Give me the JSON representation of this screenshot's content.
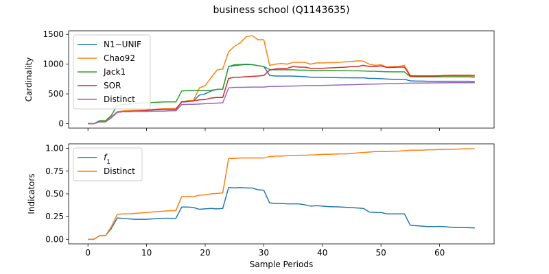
{
  "title": "business school (Q1143635)",
  "colors": {
    "blue": "#1f77b4",
    "orange": "#ff7f0e",
    "green": "#2ca02c",
    "red": "#d62728",
    "purple": "#9467bd"
  },
  "chart_data": [
    {
      "type": "line",
      "title": "business school (Q1143635)",
      "xlabel": "",
      "ylabel": "Cardinality",
      "xlim": [
        -3.3,
        69.3
      ],
      "ylim": [
        -75,
        1560
      ],
      "xticks": [
        0,
        10,
        20,
        30,
        40,
        50,
        60
      ],
      "yticks": [
        0,
        500,
        1000,
        1500
      ],
      "legend_position": "upper-left",
      "x": [
        0,
        1,
        2,
        3,
        4,
        5,
        6,
        7,
        8,
        9,
        10,
        11,
        12,
        13,
        14,
        15,
        16,
        17,
        18,
        19,
        20,
        21,
        22,
        23,
        24,
        25,
        26,
        27,
        28,
        29,
        30,
        31,
        32,
        33,
        34,
        35,
        36,
        37,
        38,
        39,
        40,
        41,
        42,
        43,
        44,
        45,
        46,
        47,
        48,
        49,
        50,
        51,
        52,
        53,
        54,
        55,
        56,
        57,
        58,
        59,
        60,
        61,
        62,
        63,
        64,
        65,
        66
      ],
      "series": [
        {
          "name": "N1−UNIF",
          "color": "#1f77b4",
          "values": [
            0,
            0,
            40,
            40,
            110,
            200,
            210,
            215,
            220,
            222,
            225,
            230,
            235,
            240,
            240,
            240,
            360,
            370,
            380,
            480,
            500,
            550,
            575,
            580,
            960,
            975,
            985,
            995,
            990,
            975,
            960,
            810,
            800,
            800,
            800,
            798,
            795,
            790,
            780,
            780,
            778,
            775,
            775,
            772,
            772,
            770,
            770,
            770,
            760,
            760,
            755,
            750,
            745,
            745,
            745,
            720,
            715,
            715,
            712,
            712,
            712,
            712,
            712,
            712,
            712,
            712,
            710
          ]
        },
        {
          "name": "Chao92",
          "color": "#ff7f0e",
          "values": [
            0,
            0,
            40,
            40,
            115,
            200,
            215,
            220,
            225,
            225,
            230,
            240,
            245,
            250,
            250,
            255,
            360,
            385,
            390,
            600,
            640,
            770,
            900,
            920,
            1210,
            1300,
            1360,
            1460,
            1480,
            1410,
            1410,
            980,
            1000,
            1010,
            1000,
            1030,
            1030,
            1030,
            1000,
            1020,
            1020,
            1025,
            1025,
            1030,
            1040,
            1045,
            1055,
            1050,
            1000,
            980,
            990,
            950,
            960,
            960,
            980,
            810,
            805,
            805,
            805,
            805,
            805,
            805,
            805,
            805,
            805,
            805,
            800
          ]
        },
        {
          "name": "Jack1",
          "color": "#2ca02c",
          "values": [
            0,
            0,
            50,
            50,
            140,
            310,
            320,
            330,
            340,
            345,
            350,
            355,
            360,
            365,
            365,
            365,
            550,
            555,
            555,
            555,
            555,
            560,
            575,
            580,
            960,
            990,
            995,
            1000,
            995,
            975,
            960,
            910,
            905,
            905,
            905,
            905,
            900,
            900,
            895,
            895,
            895,
            895,
            895,
            890,
            890,
            888,
            888,
            885,
            880,
            880,
            875,
            872,
            870,
            870,
            870,
            790,
            785,
            785,
            785,
            785,
            785,
            785,
            785,
            785,
            785,
            785,
            780
          ]
        },
        {
          "name": "SOR",
          "color": "#d62728",
          "values": [
            0,
            0,
            30,
            30,
            100,
            190,
            200,
            205,
            210,
            215,
            220,
            230,
            240,
            240,
            240,
            240,
            370,
            375,
            380,
            400,
            405,
            430,
            440,
            440,
            760,
            780,
            780,
            790,
            795,
            800,
            810,
            900,
            920,
            930,
            930,
            960,
            950,
            950,
            930,
            930,
            930,
            935,
            940,
            945,
            950,
            960,
            960,
            980,
            960,
            960,
            970,
            945,
            945,
            950,
            950,
            800,
            800,
            800,
            800,
            800,
            805,
            810,
            815,
            815,
            815,
            815,
            810
          ]
        },
        {
          "name": "Distinct",
          "color": "#9467bd",
          "values": [
            0,
            0,
            30,
            30,
            100,
            190,
            200,
            200,
            205,
            205,
            205,
            208,
            210,
            210,
            215,
            215,
            320,
            325,
            325,
            330,
            335,
            340,
            345,
            350,
            600,
            610,
            610,
            612,
            615,
            615,
            615,
            625,
            625,
            628,
            630,
            632,
            635,
            638,
            640,
            640,
            642,
            645,
            648,
            650,
            652,
            655,
            658,
            660,
            663,
            665,
            668,
            670,
            672,
            675,
            678,
            680,
            682,
            682,
            684,
            685,
            686,
            686,
            688,
            688,
            688,
            688,
            688
          ]
        }
      ]
    },
    {
      "type": "line",
      "title": "",
      "xlabel": "Sample Periods",
      "ylabel": "Indicators",
      "xlim": [
        -3.3,
        69.3
      ],
      "ylim": [
        -0.05,
        1.05
      ],
      "xticks": [
        0,
        10,
        20,
        30,
        40,
        50,
        60
      ],
      "yticks": [
        0.0,
        0.25,
        0.5,
        0.75,
        1.0
      ],
      "ytick_labels": [
        "0.00",
        "0.25",
        "0.50",
        "0.75",
        "1.00"
      ],
      "legend_position": "upper-left",
      "x": [
        0,
        1,
        2,
        3,
        4,
        5,
        6,
        7,
        8,
        9,
        10,
        11,
        12,
        13,
        14,
        15,
        16,
        17,
        18,
        19,
        20,
        21,
        22,
        23,
        24,
        25,
        26,
        27,
        28,
        29,
        30,
        31,
        32,
        33,
        34,
        35,
        36,
        37,
        38,
        39,
        40,
        41,
        42,
        43,
        44,
        45,
        46,
        47,
        48,
        49,
        50,
        51,
        52,
        53,
        54,
        55,
        56,
        57,
        58,
        59,
        60,
        61,
        62,
        63,
        64,
        65,
        66
      ],
      "series": [
        {
          "name": "f1",
          "legend_label": "f",
          "legend_sub": "1",
          "color": "#1f77b4",
          "values": [
            0,
            0,
            0.04,
            0.04,
            0.12,
            0.235,
            0.23,
            0.225,
            0.22,
            0.22,
            0.22,
            0.225,
            0.228,
            0.232,
            0.232,
            0.23,
            0.355,
            0.355,
            0.35,
            0.33,
            0.335,
            0.34,
            0.335,
            0.34,
            0.57,
            0.565,
            0.57,
            0.565,
            0.565,
            0.545,
            0.54,
            0.4,
            0.395,
            0.395,
            0.39,
            0.39,
            0.39,
            0.38,
            0.365,
            0.37,
            0.365,
            0.36,
            0.358,
            0.356,
            0.352,
            0.348,
            0.345,
            0.34,
            0.3,
            0.295,
            0.295,
            0.28,
            0.28,
            0.28,
            0.28,
            0.155,
            0.15,
            0.145,
            0.14,
            0.14,
            0.142,
            0.138,
            0.132,
            0.13,
            0.13,
            0.128,
            0.125
          ]
        },
        {
          "name": "Distinct",
          "color": "#ff7f0e",
          "values": [
            0,
            0,
            0.04,
            0.04,
            0.14,
            0.275,
            0.28,
            0.28,
            0.285,
            0.29,
            0.295,
            0.3,
            0.305,
            0.31,
            0.315,
            0.315,
            0.47,
            0.47,
            0.47,
            0.485,
            0.49,
            0.5,
            0.505,
            0.51,
            0.89,
            0.89,
            0.895,
            0.895,
            0.895,
            0.895,
            0.895,
            0.91,
            0.915,
            0.915,
            0.92,
            0.92,
            0.925,
            0.925,
            0.928,
            0.93,
            0.935,
            0.935,
            0.937,
            0.94,
            0.94,
            0.945,
            0.95,
            0.955,
            0.96,
            0.965,
            0.965,
            0.965,
            0.968,
            0.97,
            0.975,
            0.98,
            0.98,
            0.98,
            0.985,
            0.985,
            0.988,
            0.99,
            0.99,
            0.992,
            0.995,
            0.995,
            0.995
          ]
        }
      ]
    }
  ]
}
